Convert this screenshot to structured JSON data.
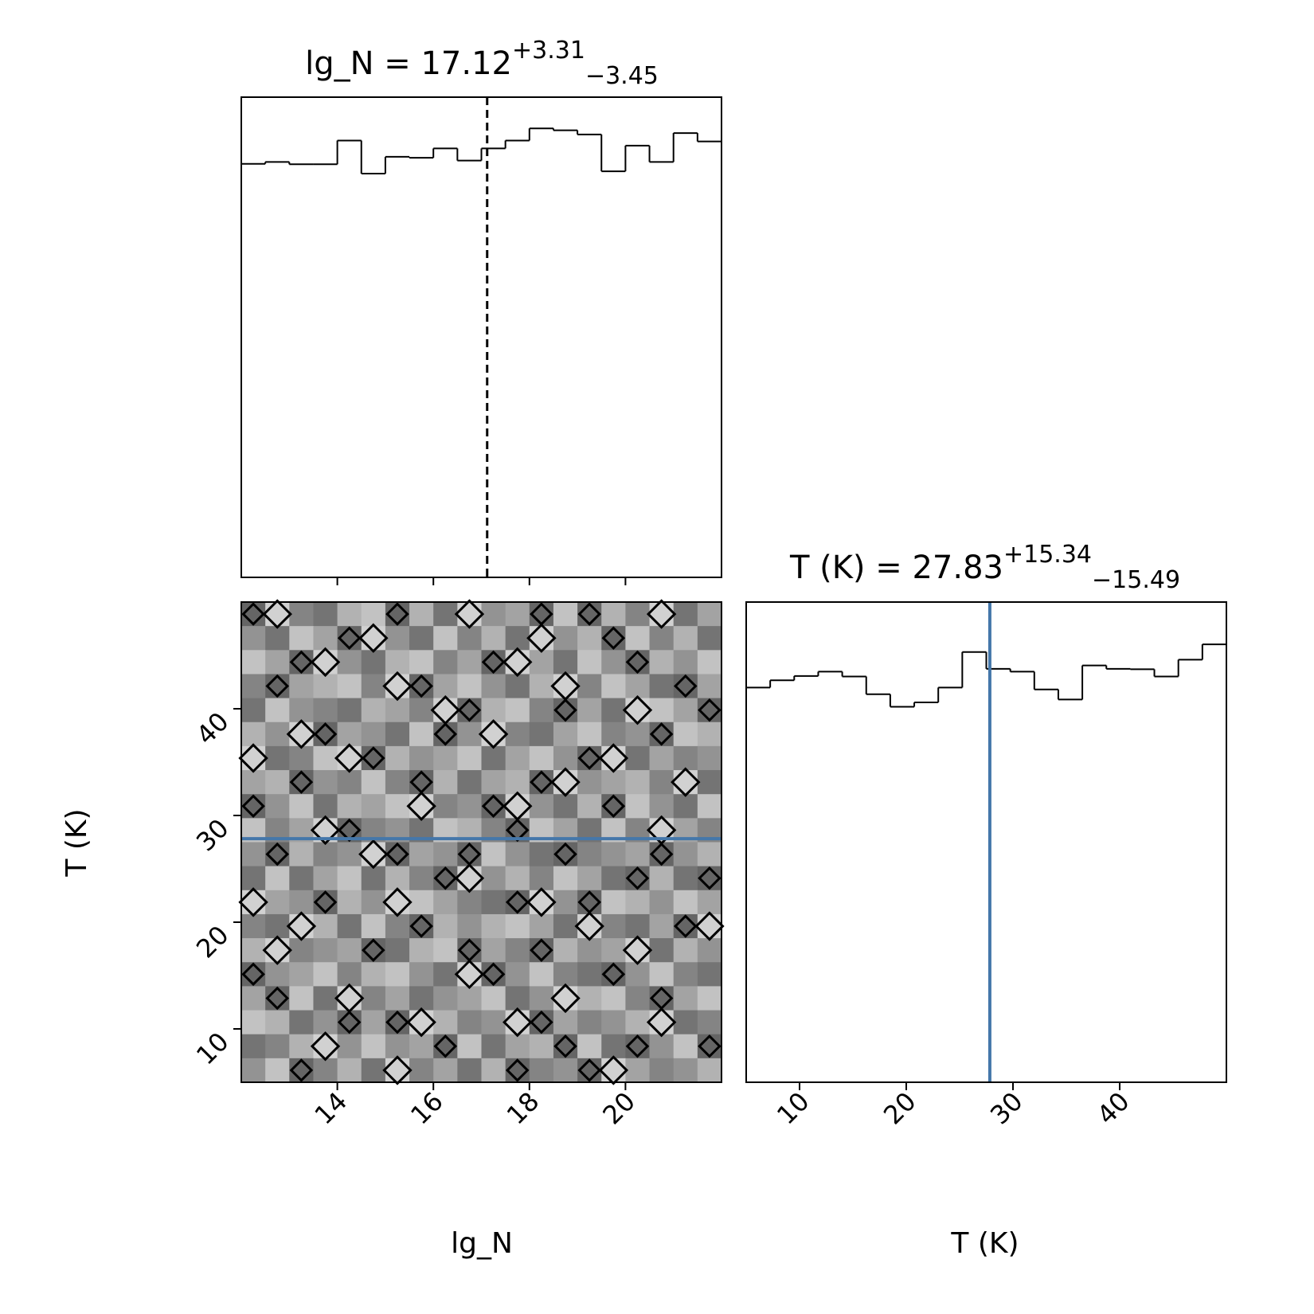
{
  "chart_data": [
    {
      "type": "histogram",
      "panel": "top-left",
      "title": {
        "text": "lg_N = 17.12",
        "sup": "+3.31",
        "sub": "−3.45"
      },
      "xlim": [
        12.0,
        22.0
      ],
      "xticks": [
        14,
        16,
        18,
        20
      ],
      "show_xtick_labels": false,
      "median_dashed": 17.12,
      "bin_edges": [
        12.0,
        12.5,
        13.0,
        13.5,
        14.0,
        14.5,
        15.0,
        15.5,
        16.0,
        16.5,
        17.0,
        17.5,
        18.0,
        18.5,
        19.0,
        19.5,
        20.0,
        20.5,
        21.0,
        21.5,
        22.0
      ],
      "counts": [
        0.887,
        0.891,
        0.886,
        0.886,
        0.937,
        0.866,
        0.902,
        0.9,
        0.92,
        0.894,
        0.92,
        0.937,
        0.963,
        0.959,
        0.95,
        0.871,
        0.926,
        0.891,
        0.953,
        0.935
      ],
      "ymax": 1.03
    },
    {
      "type": "histogram",
      "panel": "bottom-right",
      "title": {
        "text": "T (K) = 27.83",
        "sup": "+15.34",
        "sub": "−15.49"
      },
      "xlabel": "T (K)",
      "xlim": [
        5.0,
        50.0
      ],
      "xticks": [
        10,
        20,
        30,
        40
      ],
      "xtick_labels": [
        "10",
        "20",
        "30",
        "40"
      ],
      "median_dashed": 27.83,
      "truth_line": 27.83,
      "bin_edges": [
        5.0,
        7.25,
        9.5,
        11.75,
        14.0,
        16.25,
        18.5,
        20.75,
        23.0,
        25.25,
        27.5,
        29.75,
        32.0,
        34.25,
        36.5,
        38.75,
        41.0,
        43.25,
        45.5,
        47.75,
        50.0
      ],
      "counts": [
        0.822,
        0.837,
        0.846,
        0.855,
        0.845,
        0.808,
        0.782,
        0.791,
        0.822,
        0.896,
        0.861,
        0.855,
        0.818,
        0.797,
        0.868,
        0.861,
        0.86,
        0.845,
        0.88,
        0.912
      ],
      "ymax": 1.0
    },
    {
      "type": "heatmap",
      "panel": "bottom-left",
      "subtype": "2d-histogram-with-contours",
      "xlabel": "lg_N",
      "ylabel": "T (K)",
      "xlim": [
        12.0,
        22.0
      ],
      "ylim": [
        5.0,
        50.0
      ],
      "xticks": [
        14,
        16,
        18,
        20
      ],
      "xtick_labels": [
        "14",
        "16",
        "18",
        "20"
      ],
      "yticks": [
        10,
        20,
        30,
        40
      ],
      "ytick_labels": [
        "10",
        "20",
        "30",
        "40"
      ],
      "truth_hline": 27.83,
      "grid_cols": 20,
      "grid_rows": 20,
      "density": [
        [
          0.9,
          0.2,
          0.7,
          0.8,
          0.4,
          0.3,
          0.9,
          0.4,
          0.8,
          0.2,
          0.6,
          0.5,
          0.9,
          0.3,
          0.9,
          0.4,
          0.7,
          0.2,
          0.8,
          0.5
        ],
        [
          0.6,
          0.8,
          0.3,
          0.5,
          0.9,
          0.2,
          0.6,
          0.8,
          0.3,
          0.7,
          0.4,
          0.8,
          0.2,
          0.6,
          0.4,
          0.9,
          0.3,
          0.7,
          0.4,
          0.8
        ],
        [
          0.3,
          0.5,
          0.9,
          0.2,
          0.6,
          0.8,
          0.4,
          0.3,
          0.7,
          0.5,
          0.9,
          0.2,
          0.5,
          0.8,
          0.3,
          0.6,
          0.9,
          0.4,
          0.6,
          0.3
        ],
        [
          0.7,
          0.9,
          0.5,
          0.4,
          0.3,
          0.7,
          0.2,
          0.9,
          0.5,
          0.3,
          0.6,
          0.8,
          0.4,
          0.2,
          0.7,
          0.3,
          0.5,
          0.8,
          0.9,
          0.5
        ],
        [
          0.8,
          0.3,
          0.6,
          0.7,
          0.8,
          0.4,
          0.5,
          0.7,
          0.2,
          0.9,
          0.4,
          0.3,
          0.7,
          0.9,
          0.5,
          0.8,
          0.2,
          0.3,
          0.5,
          0.9
        ],
        [
          0.4,
          0.6,
          0.2,
          0.9,
          0.5,
          0.6,
          0.8,
          0.3,
          0.9,
          0.6,
          0.2,
          0.7,
          0.8,
          0.5,
          0.3,
          0.7,
          0.6,
          0.9,
          0.3,
          0.4
        ],
        [
          0.2,
          0.8,
          0.7,
          0.3,
          0.2,
          0.9,
          0.4,
          0.6,
          0.5,
          0.3,
          0.8,
          0.5,
          0.3,
          0.6,
          0.9,
          0.2,
          0.8,
          0.5,
          0.7,
          0.6
        ],
        [
          0.5,
          0.4,
          0.9,
          0.6,
          0.7,
          0.3,
          0.7,
          0.9,
          0.4,
          0.8,
          0.5,
          0.4,
          0.9,
          0.2,
          0.6,
          0.5,
          0.4,
          0.7,
          0.2,
          0.8
        ],
        [
          0.9,
          0.6,
          0.3,
          0.8,
          0.4,
          0.5,
          0.3,
          0.2,
          0.7,
          0.6,
          0.9,
          0.2,
          0.6,
          0.8,
          0.4,
          0.9,
          0.3,
          0.6,
          0.8,
          0.3
        ],
        [
          0.3,
          0.7,
          0.5,
          0.2,
          0.9,
          0.7,
          0.6,
          0.8,
          0.3,
          0.4,
          0.7,
          0.9,
          0.3,
          0.5,
          0.8,
          0.3,
          0.7,
          0.2,
          0.5,
          0.7
        ],
        [
          0.6,
          0.9,
          0.4,
          0.7,
          0.6,
          0.2,
          0.9,
          0.5,
          0.6,
          0.9,
          0.3,
          0.6,
          0.8,
          0.9,
          0.7,
          0.6,
          0.5,
          0.9,
          0.6,
          0.4
        ],
        [
          0.8,
          0.3,
          0.8,
          0.5,
          0.3,
          0.8,
          0.4,
          0.7,
          0.9,
          0.2,
          0.6,
          0.4,
          0.7,
          0.3,
          0.5,
          0.8,
          0.9,
          0.4,
          0.8,
          0.9
        ],
        [
          0.2,
          0.5,
          0.6,
          0.9,
          0.4,
          0.6,
          0.2,
          0.3,
          0.5,
          0.7,
          0.8,
          0.9,
          0.2,
          0.6,
          0.9,
          0.3,
          0.4,
          0.6,
          0.3,
          0.5
        ],
        [
          0.7,
          0.8,
          0.2,
          0.4,
          0.8,
          0.3,
          0.7,
          0.9,
          0.4,
          0.6,
          0.4,
          0.3,
          0.5,
          0.8,
          0.2,
          0.7,
          0.8,
          0.5,
          0.9,
          0.2
        ],
        [
          0.4,
          0.2,
          0.7,
          0.6,
          0.5,
          0.9,
          0.8,
          0.4,
          0.3,
          0.9,
          0.5,
          0.7,
          0.9,
          0.4,
          0.6,
          0.5,
          0.2,
          0.8,
          0.4,
          0.6
        ],
        [
          0.9,
          0.6,
          0.5,
          0.3,
          0.7,
          0.4,
          0.3,
          0.6,
          0.8,
          0.2,
          0.9,
          0.6,
          0.3,
          0.7,
          0.8,
          0.9,
          0.6,
          0.3,
          0.7,
          0.8
        ],
        [
          0.5,
          0.9,
          0.3,
          0.8,
          0.2,
          0.7,
          0.5,
          0.8,
          0.6,
          0.5,
          0.3,
          0.8,
          0.6,
          0.2,
          0.4,
          0.3,
          0.7,
          0.9,
          0.5,
          0.3
        ],
        [
          0.3,
          0.4,
          0.8,
          0.6,
          0.9,
          0.5,
          0.9,
          0.2,
          0.4,
          0.7,
          0.6,
          0.2,
          0.9,
          0.5,
          0.7,
          0.6,
          0.4,
          0.2,
          0.8,
          0.7
        ],
        [
          0.8,
          0.7,
          0.4,
          0.2,
          0.6,
          0.3,
          0.6,
          0.5,
          0.9,
          0.3,
          0.8,
          0.5,
          0.4,
          0.9,
          0.3,
          0.8,
          0.9,
          0.6,
          0.3,
          0.9
        ],
        [
          0.6,
          0.3,
          0.9,
          0.7,
          0.4,
          0.8,
          0.2,
          0.7,
          0.5,
          0.8,
          0.4,
          0.9,
          0.7,
          0.6,
          0.9,
          0.2,
          0.5,
          0.7,
          0.6,
          0.4
        ]
      ]
    }
  ],
  "colors": {
    "truth": "#4477aa",
    "histogram": "#000000",
    "contour": "#000000",
    "density_light": "#f0f0f0",
    "density_dark": "#555555"
  }
}
